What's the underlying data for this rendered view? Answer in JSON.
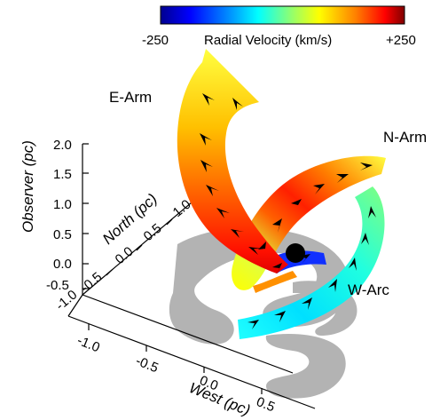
{
  "colorbar": {
    "min_label": "-250",
    "max_label": "+250",
    "title": "Radial Velocity (km/s)",
    "stops": [
      "#00008f",
      "#0000ff",
      "#0080ff",
      "#00ffff",
      "#80ff80",
      "#ffff00",
      "#ff8000",
      "#ff0000",
      "#800000"
    ]
  },
  "labels": {
    "e_arm": "E-Arm",
    "n_arm": "N-Arm",
    "w_arc": "W-Arc"
  },
  "axes": {
    "observer": {
      "label": "Observer (pc)",
      "ticks": [
        "2.0",
        "1.5",
        "1.0",
        "0.5",
        "0.0",
        "-0.5"
      ]
    },
    "north": {
      "label": "North (pc)",
      "ticks": [
        "1.0",
        "0.5",
        "0.0",
        "-0.5",
        "-1.0"
      ]
    },
    "west": {
      "label": "West (pc)",
      "ticks": [
        "-1.0",
        "-0.5",
        "0.0",
        "0.5"
      ]
    }
  },
  "colors": {
    "shadow": "#b0b0b0",
    "black_hole": "#000000",
    "axis": "#000000"
  }
}
